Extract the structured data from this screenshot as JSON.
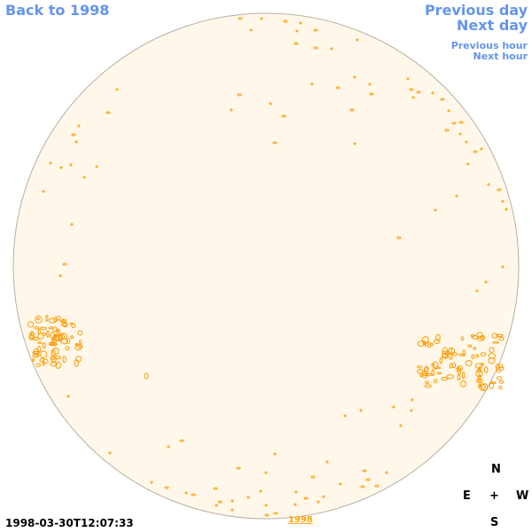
{
  "nav": {
    "back_label": "Back to 1998",
    "previous_day_label": "Previous day",
    "next_day_label": "Next day",
    "previous_hour_label": "Previous hour",
    "next_hour_label": "Next hour"
  },
  "disk": {
    "fill_color": "#FFF8EA",
    "limb_color": "#B8B0A0",
    "feature_color": "#FF9900"
  },
  "compass": {
    "north": "N",
    "east": "E",
    "center": "+",
    "west": "W",
    "south": "S"
  },
  "footer": {
    "timestamp": "1998-03-30T12:07:33",
    "year_link": "1998"
  },
  "colors": {
    "link": "#6495ED",
    "year_link": "#FFA500",
    "text": "#000000"
  }
}
